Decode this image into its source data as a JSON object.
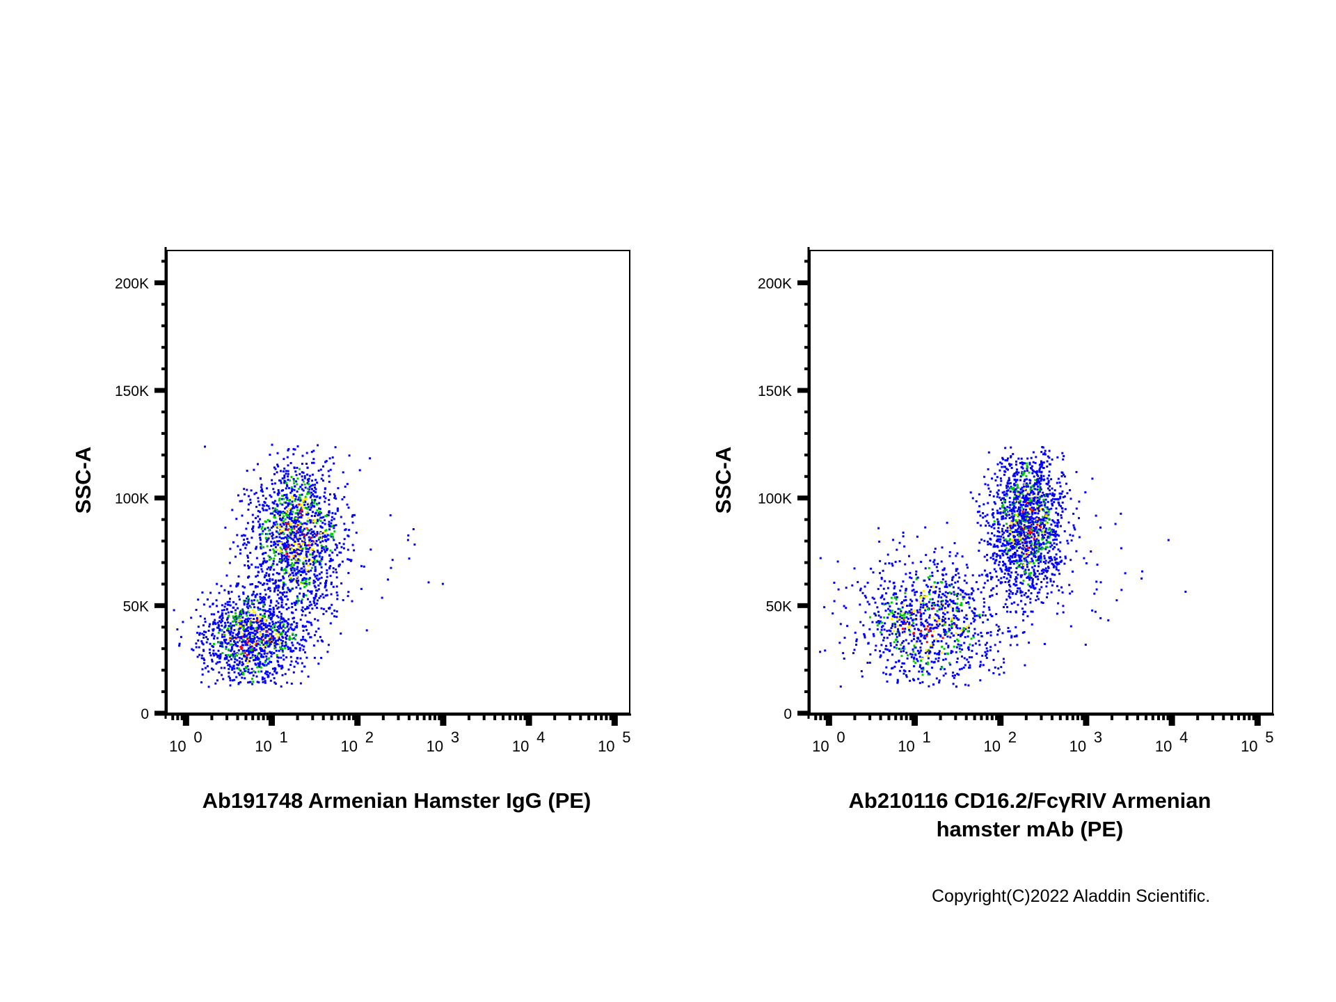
{
  "chart_data": [
    {
      "type": "scatter",
      "title": "",
      "xlabel": "Ab191748 Armenian Hamster IgG (PE)",
      "ylabel": "SSC-A",
      "x_scale": "log",
      "xlim": [
        0.6,
        150000
      ],
      "ylim": [
        0,
        215000
      ],
      "x_ticks": [
        {
          "base": "10",
          "exp": "0"
        },
        {
          "base": "10",
          "exp": "1"
        },
        {
          "base": "10",
          "exp": "2"
        },
        {
          "base": "10",
          "exp": "3"
        },
        {
          "base": "10",
          "exp": "4"
        },
        {
          "base": "10",
          "exp": "5"
        }
      ],
      "y_ticks": [
        {
          "value": 0,
          "label": "0"
        },
        {
          "value": 50000,
          "label": "50K"
        },
        {
          "value": 100000,
          "label": "100K"
        },
        {
          "value": 150000,
          "label": "150K"
        },
        {
          "value": 200000,
          "label": "200K"
        }
      ],
      "grid": false,
      "populations": [
        {
          "x_center": 20,
          "x_log_sd": 0.28,
          "y_center": 82000,
          "y_sd": 19000,
          "weight": 0.55
        },
        {
          "x_center": 6,
          "x_log_sd": 0.3,
          "y_center": 35000,
          "y_sd": 12000,
          "weight": 0.45
        }
      ]
    },
    {
      "type": "scatter",
      "title": "",
      "xlabel": "Ab210116 CD16.2/FcγRIV Armenian hamster mAb (PE)",
      "ylabel": "SSC-A",
      "x_scale": "log",
      "xlim": [
        0.6,
        150000
      ],
      "ylim": [
        0,
        215000
      ],
      "x_ticks": [
        {
          "base": "10",
          "exp": "0"
        },
        {
          "base": "10",
          "exp": "1"
        },
        {
          "base": "10",
          "exp": "2"
        },
        {
          "base": "10",
          "exp": "3"
        },
        {
          "base": "10",
          "exp": "4"
        },
        {
          "base": "10",
          "exp": "5"
        }
      ],
      "y_ticks": [
        {
          "value": 0,
          "label": "0"
        },
        {
          "value": 50000,
          "label": "50K"
        },
        {
          "value": 100000,
          "label": "100K"
        },
        {
          "value": 150000,
          "label": "150K"
        },
        {
          "value": 200000,
          "label": "200K"
        }
      ],
      "grid": false,
      "populations": [
        {
          "x_center": 200,
          "x_log_sd": 0.22,
          "y_center": 88000,
          "y_sd": 17000,
          "weight": 0.6
        },
        {
          "x_center": 15,
          "x_log_sd": 0.45,
          "y_center": 42000,
          "y_sd": 15000,
          "weight": 0.4
        }
      ]
    }
  ],
  "density_colors": [
    "#0000ff",
    "#00cc00",
    "#ffee00",
    "#ff0000"
  ],
  "copyright": "Copyright(C)2022 Aladdin Scientific."
}
